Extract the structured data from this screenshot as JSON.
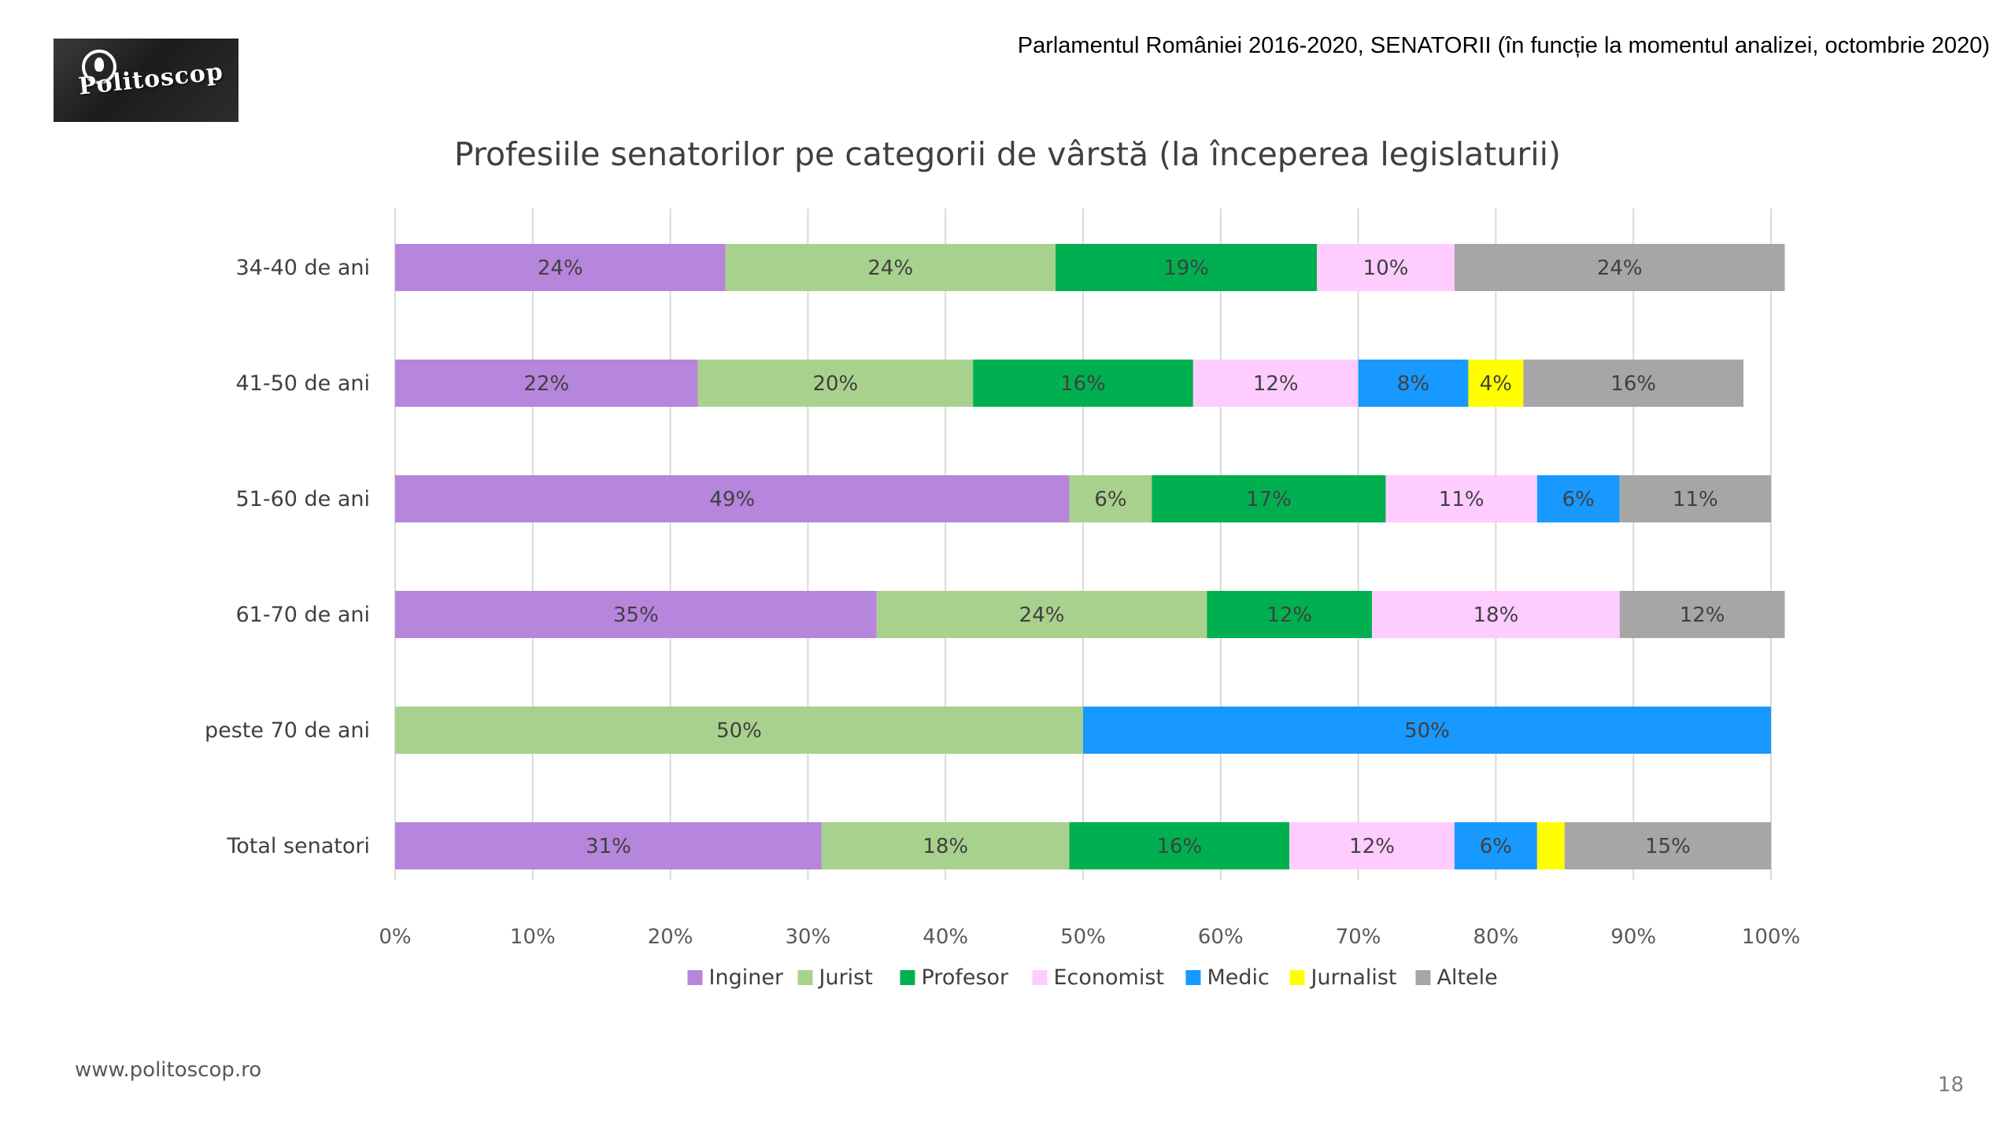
{
  "header": {
    "note": "Parlamentul României 2016-2020, SENATORII (în funcție la momentul analizei, octombrie 2020)",
    "logo_text": "Politoscop"
  },
  "footer": {
    "url": "www.politoscop.ro",
    "page_number": "18"
  },
  "chart_data": {
    "type": "bar",
    "orientation": "horizontal",
    "stacked": "100%",
    "title": "Profesiile senatorilor pe categorii de vârstă (la începerea legislaturii)",
    "categories": [
      "34-40 de ani",
      "41-50 de ani",
      "51-60 de ani",
      "61-70 de ani",
      "peste 70 de ani",
      "Total senatori"
    ],
    "x_ticks": [
      "0%",
      "10%",
      "20%",
      "30%",
      "40%",
      "50%",
      "60%",
      "70%",
      "80%",
      "90%",
      "100%"
    ],
    "xlim": [
      0,
      100
    ],
    "grid": true,
    "legend_position": "bottom",
    "series": [
      {
        "name": "Inginer",
        "color": "#b685dc",
        "values": [
          24,
          22,
          49,
          35,
          0,
          31
        ],
        "labels": [
          "24%",
          "22%",
          "49%",
          "35%",
          "",
          "31%"
        ]
      },
      {
        "name": "Jurist",
        "color": "#a9d18e",
        "values": [
          24,
          20,
          6,
          24,
          50,
          18
        ],
        "labels": [
          "24%",
          "20%",
          "6%",
          "24%",
          "50%",
          "18%"
        ]
      },
      {
        "name": "Profesor",
        "color": "#00b050",
        "values": [
          19,
          16,
          17,
          12,
          0,
          16
        ],
        "labels": [
          "19%",
          "16%",
          "17%",
          "12%",
          "",
          "16%"
        ]
      },
      {
        "name": "Economist",
        "color": "#ffccff",
        "values": [
          10,
          12,
          11,
          18,
          0,
          12
        ],
        "labels": [
          "10%",
          "12%",
          "11%",
          "18%",
          "",
          "12%"
        ]
      },
      {
        "name": "Medic",
        "color": "#1899ff",
        "values": [
          0,
          8,
          6,
          0,
          50,
          6
        ],
        "labels": [
          "",
          "8%",
          "6%",
          "",
          "50%",
          "6%"
        ]
      },
      {
        "name": "Jurnalist",
        "color": "#ffff00",
        "values": [
          0,
          4,
          0,
          0,
          0,
          2
        ],
        "labels": [
          "",
          "4%",
          "",
          "",
          "",
          ""
        ]
      },
      {
        "name": "Altele",
        "color": "#a6a6a6",
        "values": [
          24,
          16,
          11,
          12,
          0,
          15
        ],
        "labels": [
          "24%",
          "16%",
          "11%",
          "12%",
          "",
          "15%"
        ]
      }
    ]
  }
}
